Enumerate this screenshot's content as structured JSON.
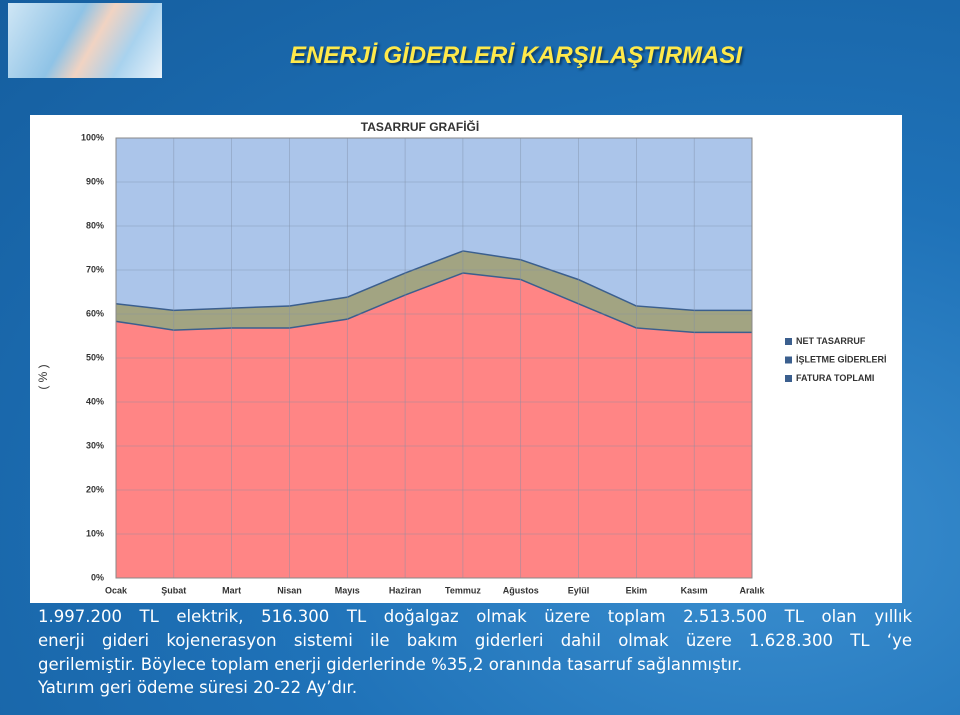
{
  "slide_title": "ENERJİ GİDERLERİ KARŞILAŞTIRMASI",
  "chart_data": {
    "type": "stacked_area",
    "title": "TASARRUF GRAFİĞİ",
    "y_label": "( % )",
    "categories": [
      "Ocak",
      "Şubat",
      "Mart",
      "Nisan",
      "Mayıs",
      "Haziran",
      "Temmuz",
      "Ağustos",
      "Eylül",
      "Ekim",
      "Kasım",
      "Aralık"
    ],
    "series": [
      {
        "name": "FATURA TOPLAMI",
        "color": "#ff8585",
        "values": [
          58.5,
          56.5,
          57,
          57,
          59,
          64.5,
          69.5,
          68,
          62.5,
          57,
          56,
          56
        ]
      },
      {
        "name": "İŞLETME GİDERLERİ",
        "color": "#a2a482",
        "values": [
          4,
          4.5,
          4.5,
          5,
          5,
          5,
          5,
          4.5,
          5.5,
          5,
          5,
          5
        ]
      },
      {
        "name": "NET TASARRUF",
        "color": "#abc5ea",
        "values": [
          37.5,
          39,
          38.5,
          38,
          36,
          30.5,
          25.5,
          27.5,
          32,
          38,
          39,
          39
        ]
      }
    ],
    "ylim": [
      0,
      100
    ],
    "yticks": [
      {
        "value": 0,
        "label": "0%"
      },
      {
        "value": 10,
        "label": "10%"
      },
      {
        "value": 20,
        "label": "20%"
      },
      {
        "value": 30,
        "label": "30%"
      },
      {
        "value": 40,
        "label": "40%"
      },
      {
        "value": 50,
        "label": "50%"
      },
      {
        "value": 60,
        "label": "60%"
      },
      {
        "value": 70,
        "label": "70%"
      },
      {
        "value": 80,
        "label": "80%"
      },
      {
        "value": 90,
        "label": "90%"
      },
      {
        "value": 100,
        "label": "100%"
      }
    ],
    "grid": true
  },
  "body_lines": [
    "1.997.200 TL elektrik, 516.300 TL doğalgaz olmak üzere toplam 2.513.500 TL olan yıllık",
    "enerji gideri kojenerasyon sistemi ile bakım giderleri dahil olmak üzere 1.628.300 TL ‘ye",
    "gerilemiştir. Böylece toplam enerji giderlerinde %35,2 oranında tasarruf sağlanmıştır.",
    "Yatırım geri ödeme süresi 20-22 Ay’dır."
  ]
}
